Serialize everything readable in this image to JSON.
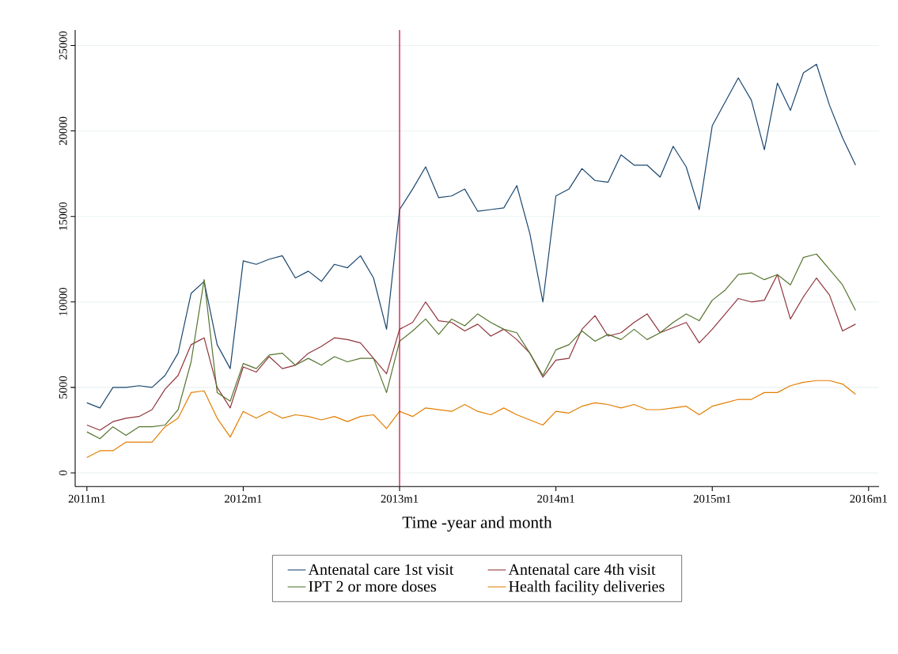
{
  "chart_data": {
    "type": "line",
    "xlabel": "Time -year and month",
    "x": [
      "2011-01",
      "2011-02",
      "2011-03",
      "2011-04",
      "2011-05",
      "2011-06",
      "2011-07",
      "2011-08",
      "2011-09",
      "2011-10",
      "2011-11",
      "2011-12",
      "2012-01",
      "2012-02",
      "2012-03",
      "2012-04",
      "2012-05",
      "2012-06",
      "2012-07",
      "2012-08",
      "2012-09",
      "2012-10",
      "2012-11",
      "2012-12",
      "2013-01",
      "2013-02",
      "2013-03",
      "2013-04",
      "2013-05",
      "2013-06",
      "2013-07",
      "2013-08",
      "2013-09",
      "2013-10",
      "2013-11",
      "2013-12",
      "2014-01",
      "2014-02",
      "2014-03",
      "2014-04",
      "2014-05",
      "2014-06",
      "2014-07",
      "2014-08",
      "2014-09",
      "2014-10",
      "2014-11",
      "2014-12",
      "2015-01",
      "2015-02",
      "2015-03",
      "2015-04",
      "2015-05",
      "2015-06",
      "2015-07",
      "2015-08",
      "2015-09",
      "2015-10",
      "2015-11",
      "2015-12"
    ],
    "series": [
      {
        "name": "Antenatal care 1st visit",
        "color": "#1a476f",
        "values": [
          4100,
          3800,
          5000,
          5000,
          5100,
          5000,
          5700,
          7000,
          10500,
          11200,
          7500,
          6100,
          12400,
          12200,
          12500,
          12700,
          11400,
          11800,
          11200,
          12200,
          12000,
          12700,
          11400,
          8400,
          15400,
          16600,
          17900,
          16100,
          16200,
          16600,
          15300,
          15400,
          15500,
          16800,
          14000,
          10000,
          16200,
          16600,
          17800,
          17100,
          17000,
          18600,
          18000,
          18000,
          17300,
          19100,
          17900,
          15400,
          20300,
          21700,
          23100,
          21800,
          18900,
          22800,
          21200,
          23400,
          23900,
          21500,
          19600,
          18000
        ]
      },
      {
        "name": "Antenatal care 4th visit",
        "color": "#90353b",
        "values": [
          2800,
          2500,
          3000,
          3200,
          3300,
          3700,
          4900,
          5700,
          7500,
          7900,
          5000,
          3800,
          6200,
          5900,
          6800,
          6100,
          6300,
          7000,
          7400,
          7900,
          7800,
          7600,
          6700,
          5800,
          8400,
          8800,
          10000,
          8900,
          8800,
          8300,
          8700,
          8000,
          8400,
          7800,
          7000,
          5600,
          6600,
          6700,
          8400,
          9200,
          8000,
          8200,
          8800,
          9300,
          8200,
          8500,
          8800,
          7600,
          8400,
          9300,
          10200,
          10000,
          10100,
          11600,
          9000,
          10300,
          11400,
          10400,
          8300,
          8700
        ]
      },
      {
        "name": "IPT 2 or more doses",
        "color": "#55752f",
        "values": [
          2400,
          2000,
          2700,
          2200,
          2700,
          2700,
          2800,
          3700,
          6500,
          11300,
          4700,
          4200,
          6400,
          6100,
          6900,
          7000,
          6300,
          6700,
          6300,
          6800,
          6500,
          6700,
          6700,
          4700,
          7700,
          8300,
          9000,
          8100,
          9000,
          8600,
          9300,
          8800,
          8400,
          8200,
          7000,
          5700,
          7200,
          7500,
          8300,
          7700,
          8100,
          7800,
          8400,
          7800,
          8200,
          8800,
          9300,
          8900,
          10100,
          10700,
          11600,
          11700,
          11300,
          11600,
          11000,
          12600,
          12800,
          11900,
          11000,
          9500
        ]
      },
      {
        "name": "Health facility deliveries",
        "color": "#e37e00",
        "values": [
          900,
          1300,
          1300,
          1800,
          1800,
          1800,
          2700,
          3200,
          4700,
          4800,
          3200,
          2100,
          3600,
          3200,
          3600,
          3200,
          3400,
          3300,
          3100,
          3300,
          3000,
          3300,
          3400,
          2600,
          3600,
          3300,
          3800,
          3700,
          3600,
          4000,
          3600,
          3400,
          3800,
          3400,
          3100,
          2800,
          3600,
          3500,
          3900,
          4100,
          4000,
          3800,
          4000,
          3700,
          3700,
          3800,
          3900,
          3400,
          3900,
          4100,
          4300,
          4300,
          4700,
          4700,
          5100,
          5300,
          5400,
          5400,
          5200,
          4600
        ]
      }
    ],
    "xlim": [
      "2010-12-04",
      "2016-01-25"
    ],
    "xticks": [
      {
        "value": "2011-01",
        "label": "2011m1"
      },
      {
        "value": "2012-01",
        "label": "2012m1"
      },
      {
        "value": "2013-01",
        "label": "2013m1"
      },
      {
        "value": "2014-01",
        "label": "2014m1"
      },
      {
        "value": "2015-01",
        "label": "2015m1"
      },
      {
        "value": "2016-01",
        "label": "2016m1"
      }
    ],
    "ylim": [
      -800,
      25900
    ],
    "yticks": [
      0,
      5000,
      10000,
      15000,
      20000,
      25000
    ],
    "ref_lines": [
      {
        "axis": "x",
        "value": "2013-01",
        "color": "#c10534"
      }
    ],
    "grid": "y",
    "legend": "bottom",
    "marker": "none",
    "line_style": "solid"
  }
}
